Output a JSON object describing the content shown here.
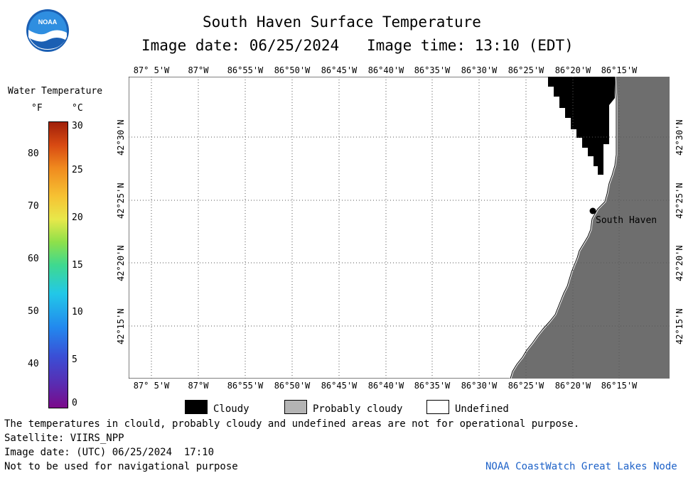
{
  "header": {
    "title": "South Haven Surface Temperature",
    "image_date_label": "Image date: 06/25/2024",
    "image_time_label": "Image time: 13:10 (EDT)"
  },
  "logo": {
    "text": "NOAA"
  },
  "colorbar": {
    "title": "Water Temperature",
    "unit_f": "°F",
    "unit_c": "°C",
    "f_ticks": [
      "80",
      "70",
      "60",
      "50",
      "40"
    ],
    "c_ticks": [
      "30",
      "25",
      "20",
      "15",
      "10",
      "5",
      "0"
    ]
  },
  "map": {
    "lon_labels": [
      "87° 5'W",
      "87°W",
      "86°55'W",
      "86°50'W",
      "86°45'W",
      "86°40'W",
      "86°35'W",
      "86°30'W",
      "86°25'W",
      "86°20'W",
      "86°15'W"
    ],
    "lat_labels": [
      "42°30'N",
      "42°25'N",
      "42°20'N",
      "42°15'N"
    ],
    "place_label": "South Haven",
    "colors": {
      "land": "#6e6e6e",
      "cloud": "#000000",
      "water_undefined": "#ffffff",
      "grid": "#555555"
    }
  },
  "legend": {
    "cloudy": "Cloudy",
    "probably_cloudy": "Probably cloudy",
    "undefined": "Undefined",
    "colors": {
      "cloudy": "#000000",
      "probably_cloudy": "#b4b4b4",
      "undefined": "#ffffff"
    }
  },
  "footer": {
    "disclaimer": "The temperatures in clould, probably cloudy and undefined areas are not for operational purpose.",
    "satellite": "Satellite: VIIRS_NPP",
    "utc_date": "Image date: (UTC) 06/25/2024  17:10",
    "nav_warning": "Not to be used for navigational purpose",
    "credit": "NOAA CoastWatch Great Lakes Node"
  }
}
